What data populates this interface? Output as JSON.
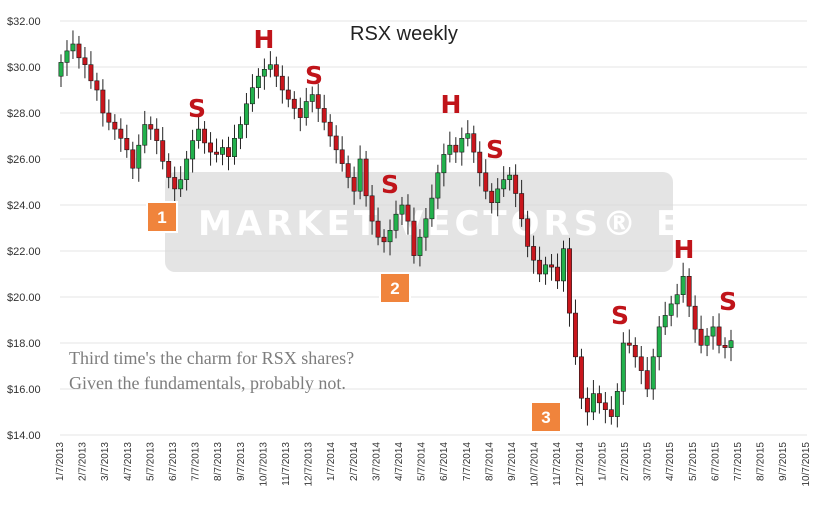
{
  "chart_data": {
    "type": "candlestick",
    "title": "RSX weekly",
    "xlabel": "",
    "ylabel": "",
    "ylim": [
      14,
      32
    ],
    "y_ticks": [
      "$14.00",
      "$16.00",
      "$18.00",
      "$20.00",
      "$22.00",
      "$24.00",
      "$26.00",
      "$28.00",
      "$30.00",
      "$32.00"
    ],
    "x_ticks": [
      "1/7/2013",
      "2/7/2013",
      "3/7/2013",
      "4/7/2013",
      "5/7/2013",
      "6/7/2013",
      "7/7/2013",
      "8/7/2013",
      "9/7/2013",
      "10/7/2013",
      "11/7/2013",
      "12/7/2013",
      "1/7/2014",
      "2/7/2014",
      "3/7/2014",
      "4/7/2014",
      "5/7/2014",
      "6/7/2014",
      "7/7/2014",
      "8/7/2014",
      "9/7/2014",
      "10/7/2014",
      "11/7/2014",
      "12/7/2014",
      "1/7/2015",
      "2/7/2015",
      "3/7/2015",
      "4/7/2015",
      "5/7/2015",
      "6/7/2015",
      "7/7/2015",
      "8/7/2015",
      "9/7/2015",
      "10/7/2015"
    ],
    "grid": true,
    "colors": {
      "up": "#22b14c",
      "down": "#c9161d",
      "annotation": "#c0141a",
      "marker": "#f0843c",
      "note": "#7d7d7d"
    },
    "closes": [
      30.2,
      30.7,
      31.0,
      30.4,
      30.1,
      29.4,
      29.0,
      28.0,
      27.6,
      27.3,
      26.9,
      26.4,
      25.6,
      26.6,
      27.5,
      27.3,
      26.8,
      25.9,
      25.2,
      24.7,
      25.1,
      26.0,
      26.8,
      27.3,
      26.7,
      26.3,
      26.2,
      26.5,
      26.1,
      26.9,
      27.5,
      28.4,
      29.1,
      29.6,
      29.9,
      30.1,
      29.6,
      29.0,
      28.6,
      28.2,
      27.8,
      28.5,
      28.8,
      28.2,
      27.6,
      27.0,
      26.4,
      25.8,
      25.2,
      24.6,
      26.0,
      24.4,
      23.3,
      22.6,
      22.4,
      22.9,
      23.6,
      24.0,
      23.3,
      21.8,
      22.6,
      23.4,
      24.3,
      25.4,
      26.2,
      26.6,
      26.3,
      26.9,
      27.1,
      26.3,
      25.4,
      24.6,
      24.1,
      24.7,
      25.1,
      25.3,
      24.5,
      23.4,
      22.2,
      21.6,
      21.0,
      21.4,
      21.3,
      20.7,
      22.1,
      19.3,
      17.4,
      15.6,
      15.0,
      15.8,
      15.4,
      15.1,
      14.8,
      15.9,
      18.0,
      17.9,
      17.4,
      16.8,
      16.0,
      17.4,
      18.7,
      19.2,
      19.7,
      20.1,
      20.9,
      19.6,
      18.6,
      17.9,
      18.3,
      18.7,
      17.9,
      17.8,
      18.1
    ],
    "events": [
      {
        "label": "H"
      },
      {
        "label": "S"
      },
      {
        "label": "S"
      },
      {
        "label": "1"
      },
      {
        "label": "H"
      },
      {
        "label": "S"
      },
      {
        "label": "S"
      },
      {
        "label": "2"
      },
      {
        "label": "H"
      },
      {
        "label": "S"
      },
      {
        "label": "S"
      },
      {
        "label": "3"
      }
    ]
  },
  "watermark": "MARKET VECTORS® ETFs",
  "note": [
    "Third time's the charm for RSX shares?",
    "Given the fundamentals, probably not."
  ]
}
